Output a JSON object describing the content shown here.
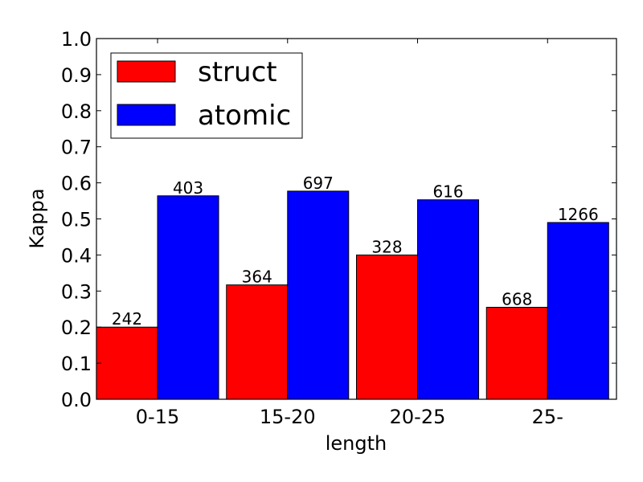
{
  "chart_data": {
    "type": "bar",
    "xlabel": "length",
    "ylabel": "Kappa",
    "categories": [
      "0-15",
      "15-20",
      "20-25",
      "25-"
    ],
    "ylim": [
      0.0,
      1.0
    ],
    "yticks": [
      "0.0",
      "0.1",
      "0.2",
      "0.3",
      "0.4",
      "0.5",
      "0.6",
      "0.7",
      "0.8",
      "0.9",
      "1.0"
    ],
    "grid": false,
    "legend_position": "top-left",
    "series": [
      {
        "name": "struct",
        "color": "#ff0000",
        "values": [
          0.2,
          0.317,
          0.4,
          0.255
        ],
        "labels": [
          "242",
          "364",
          "328",
          "668"
        ]
      },
      {
        "name": "atomic",
        "color": "#0000ff",
        "values": [
          0.564,
          0.577,
          0.553,
          0.49
        ],
        "labels": [
          "403",
          "697",
          "616",
          "1266"
        ]
      }
    ]
  }
}
